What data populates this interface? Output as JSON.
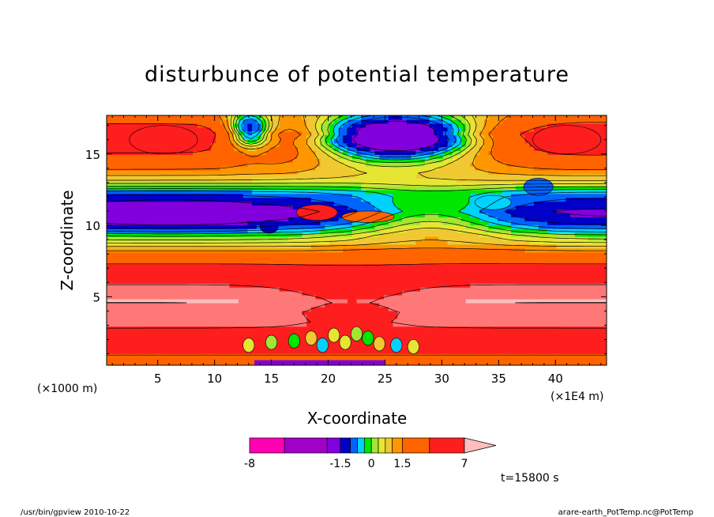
{
  "chart_data": {
    "type": "heatmap",
    "title": "disturbunce of potential temperature",
    "xlabel": "X-coordinate",
    "ylabel": "Z-coordinate",
    "x_unit_label": "(×1E4 m)",
    "y_unit_label": "(×1000 m)",
    "xlim": [
      0.5,
      44.5
    ],
    "ylim": [
      0.2,
      17.7
    ],
    "x_ticks": [
      {
        "value": 5,
        "label": "5"
      },
      {
        "value": 10,
        "label": "10"
      },
      {
        "value": 15,
        "label": "15"
      },
      {
        "value": 20,
        "label": "20"
      },
      {
        "value": 25,
        "label": "25"
      },
      {
        "value": 30,
        "label": "30"
      },
      {
        "value": 35,
        "label": "35"
      },
      {
        "value": 40,
        "label": "40"
      }
    ],
    "y_ticks": [
      {
        "value": 5,
        "label": "5"
      },
      {
        "value": 10,
        "label": "10"
      },
      {
        "value": 15,
        "label": "15"
      }
    ],
    "levels": [
      -8,
      -5,
      -3,
      -1.5,
      -1,
      -0.6,
      -0.3,
      0,
      0.3,
      0.6,
      1,
      1.5,
      3,
      5,
      7
    ],
    "colors": [
      "#ff00b4",
      "#a000c8",
      "#8200dc",
      "#0000c8",
      "#0064ff",
      "#00d2ff",
      "#00e600",
      "#a0e632",
      "#e6e632",
      "#f0c832",
      "#ff9600",
      "#ff6400",
      "#ff1e1e",
      "#ff7878",
      "#ffbebe"
    ],
    "colorbar_labels": [
      {
        "level": -8,
        "label": "-8"
      },
      {
        "level": -1.5,
        "label": "-1.5"
      },
      {
        "level": 0,
        "label": "0"
      },
      {
        "level": 1.5,
        "label": "1.5"
      },
      {
        "level": 7,
        "label": "7"
      }
    ],
    "time_label": "t=15800 s"
  },
  "footer": {
    "left": "/usr/bin/gpview  2010-10-22",
    "right": "arare-earth_PotTemp.nc@PotTemp"
  }
}
